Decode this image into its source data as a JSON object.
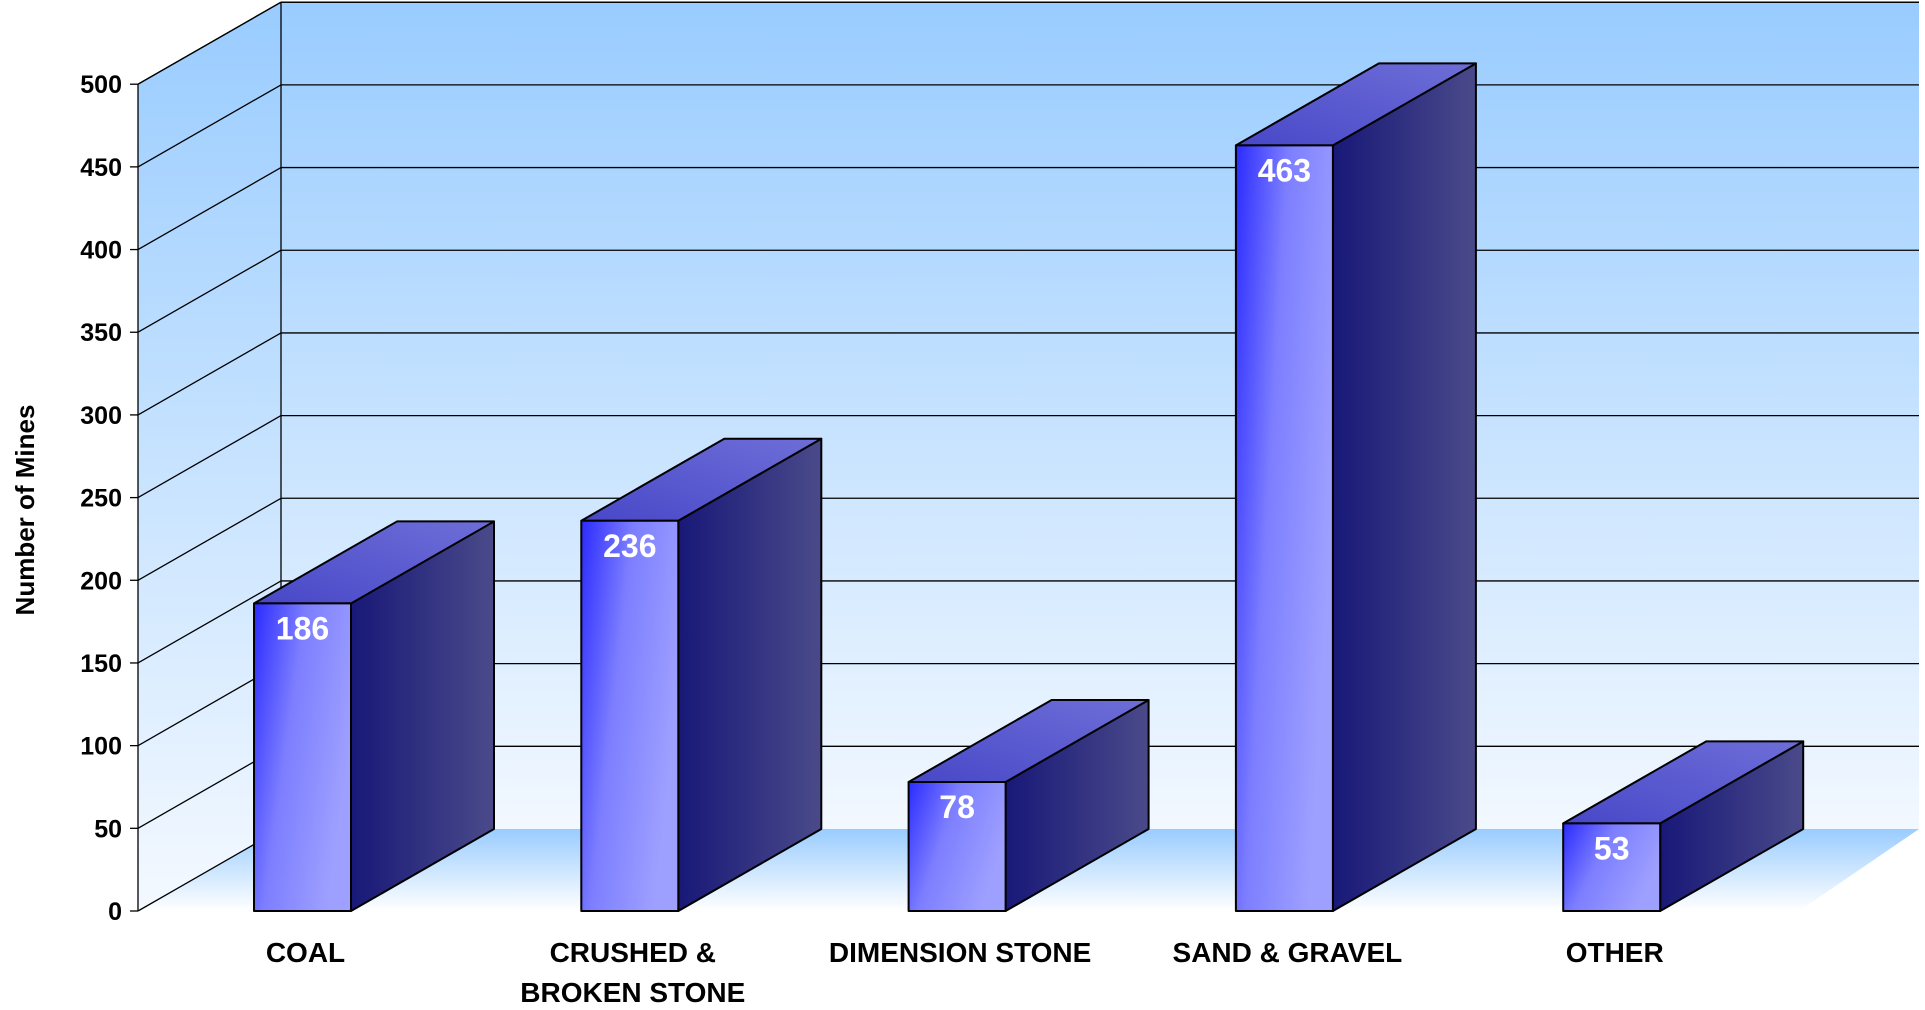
{
  "chart_data": {
    "type": "bar",
    "categories": [
      [
        "COAL"
      ],
      [
        "CRUSHED &",
        "BROKEN STONE"
      ],
      [
        "DIMENSION STONE"
      ],
      [
        "SAND & GRAVEL"
      ],
      [
        "OTHER"
      ]
    ],
    "values": [
      186,
      236,
      78,
      463,
      53
    ],
    "data_labels": [
      "186",
      "236",
      "78",
      "463",
      "53"
    ],
    "ylabel": "Number of Mines",
    "ylim": [
      0,
      500
    ],
    "yticks": [
      0,
      50,
      100,
      150,
      200,
      250,
      300,
      350,
      400,
      450,
      500
    ],
    "grid": true,
    "three_d": true,
    "colors": {
      "bar_front_light": "#9a9cff",
      "bar_front_dark": "#2b2bff",
      "bar_top": "#5a5ad0",
      "bar_side_dark": "#1a1a7a",
      "bar_side_light": "#4a4a88",
      "wall_top": "#99ccff",
      "wall_bottom": "#f2f8ff",
      "floor": "#b8dcff"
    }
  }
}
